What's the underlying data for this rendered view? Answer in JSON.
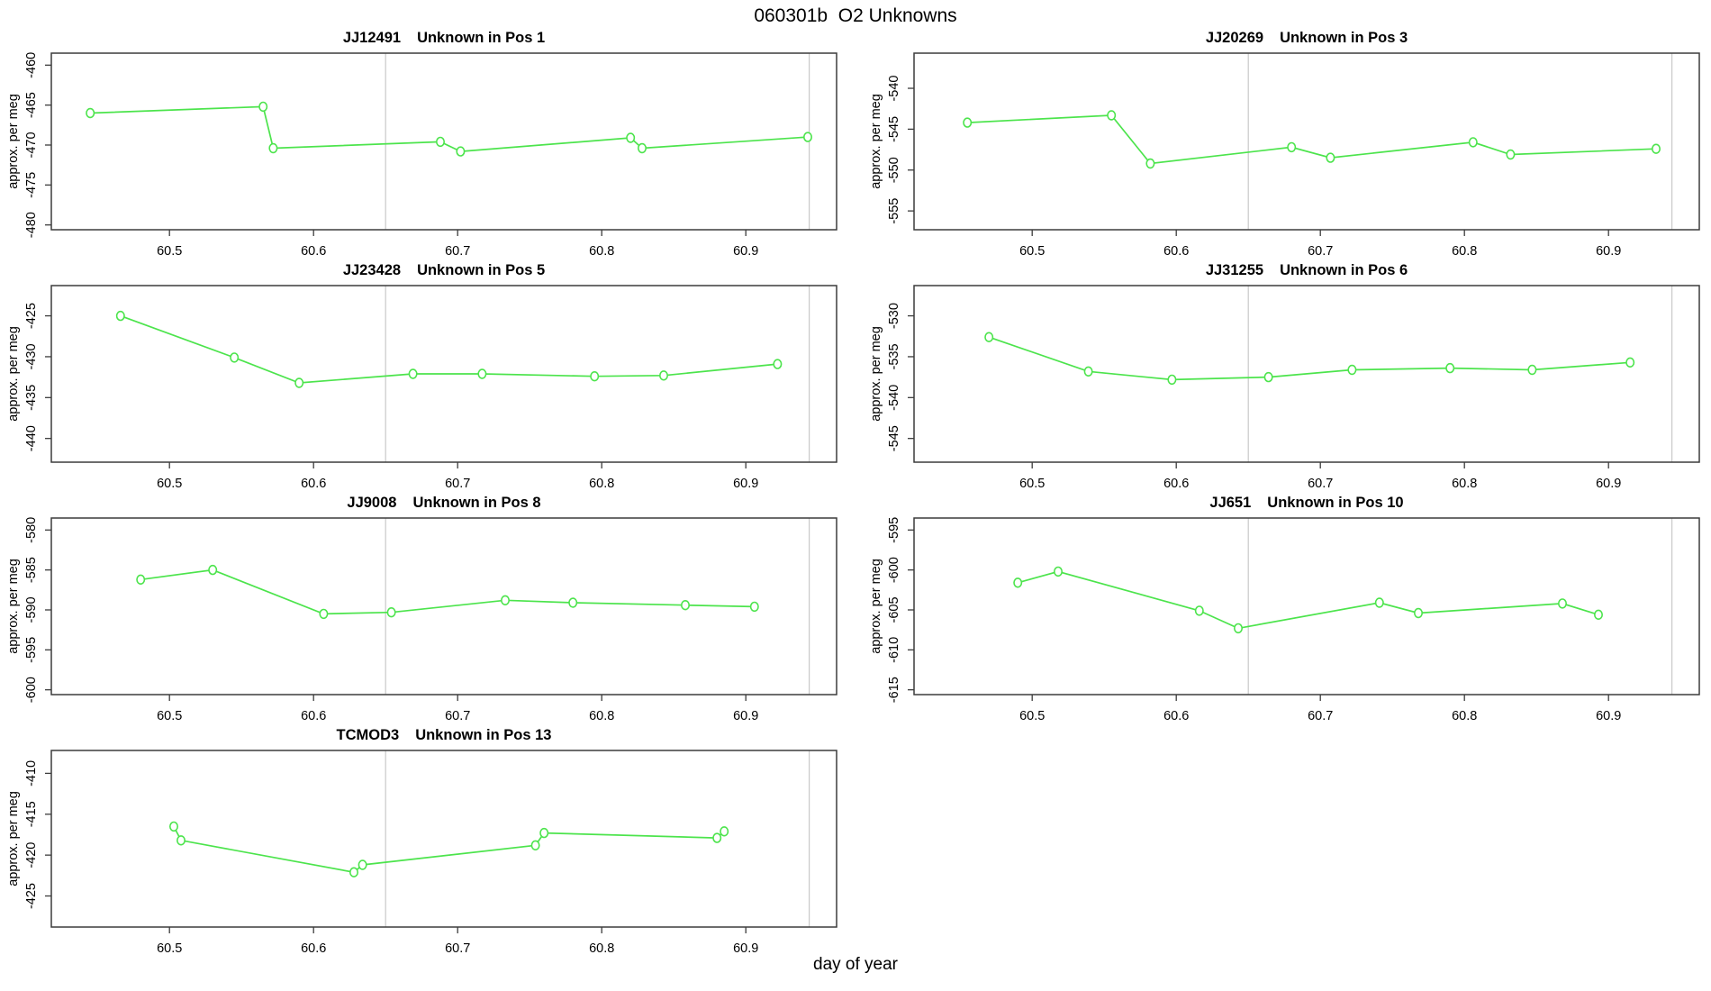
{
  "figure": {
    "title": "060301b  O2 Unknowns",
    "xlabel": "day of year",
    "line_color": "#4ce44c",
    "marker": "open-circle",
    "box_color": "#3c3c3c",
    "vline_color": "#c9c9c9",
    "vlines": [
      60.65,
      60.944
    ]
  },
  "chart_data": [
    {
      "type": "line",
      "sample": "JJ12491",
      "label": "Unknown in Pos 1",
      "ylabel": "approx. per meg",
      "x": [
        60.445,
        60.565,
        60.572,
        60.688,
        60.702,
        60.82,
        60.828,
        60.943
      ],
      "y": [
        -466.0,
        -465.2,
        -470.4,
        -469.6,
        -470.8,
        -469.1,
        -470.4,
        -469.0
      ],
      "xticks": [
        60.5,
        60.6,
        60.7,
        60.8,
        60.9
      ],
      "yticks": [
        -480,
        -475,
        -470,
        -465,
        -460
      ],
      "xlim": [
        60.418,
        60.963
      ],
      "ylim": [
        -480.6,
        -458.5
      ]
    },
    {
      "type": "line",
      "sample": "JJ20269",
      "label": "Unknown in Pos 3",
      "ylabel": "approx. per meg",
      "x": [
        60.455,
        60.555,
        60.582,
        60.68,
        60.707,
        60.806,
        60.832,
        60.933
      ],
      "y": [
        -544.2,
        -543.3,
        -549.2,
        -547.2,
        -548.5,
        -546.6,
        -548.1,
        -547.4
      ],
      "xticks": [
        60.5,
        60.6,
        60.7,
        60.8,
        60.9
      ],
      "yticks": [
        -555,
        -550,
        -545,
        -540
      ],
      "xlim": [
        60.418,
        60.963
      ],
      "ylim": [
        -557.3,
        -535.7
      ]
    },
    {
      "type": "line",
      "sample": "JJ23428",
      "label": "Unknown in Pos 5",
      "ylabel": "approx. per meg",
      "x": [
        60.466,
        60.545,
        60.59,
        60.669,
        60.717,
        60.795,
        60.843,
        60.922
      ],
      "y": [
        -425.0,
        -430.1,
        -433.2,
        -432.1,
        -432.1,
        -432.4,
        -432.3,
        -430.9
      ],
      "xticks": [
        60.5,
        60.6,
        60.7,
        60.8,
        60.9
      ],
      "yticks": [
        -440,
        -435,
        -430,
        -425
      ],
      "xlim": [
        60.418,
        60.963
      ],
      "ylim": [
        -442.9,
        -421.3
      ]
    },
    {
      "type": "line",
      "sample": "JJ31255",
      "label": "Unknown in Pos 6",
      "ylabel": "approx. per meg",
      "x": [
        60.47,
        60.539,
        60.597,
        60.664,
        60.722,
        60.79,
        60.847,
        60.915
      ],
      "y": [
        -532.6,
        -536.8,
        -537.8,
        -537.5,
        -536.6,
        -536.4,
        -536.6,
        -535.7
      ],
      "xticks": [
        60.5,
        60.6,
        60.7,
        60.8,
        60.9
      ],
      "yticks": [
        -545,
        -540,
        -535,
        -530
      ],
      "xlim": [
        60.418,
        60.963
      ],
      "ylim": [
        -547.9,
        -526.3
      ]
    },
    {
      "type": "line",
      "sample": "JJ9008",
      "label": "Unknown in Pos 8",
      "ylabel": "approx. per meg",
      "x": [
        60.48,
        60.53,
        60.607,
        60.654,
        60.733,
        60.78,
        60.858,
        60.906
      ],
      "y": [
        -586.2,
        -585.0,
        -590.5,
        -590.3,
        -588.8,
        -589.1,
        -589.4,
        -589.6
      ],
      "xticks": [
        60.5,
        60.6,
        60.7,
        60.8,
        60.9
      ],
      "yticks": [
        -600,
        -595,
        -590,
        -585,
        -580
      ],
      "xlim": [
        60.418,
        60.963
      ],
      "ylim": [
        -600.6,
        -578.5
      ]
    },
    {
      "type": "line",
      "sample": "JJ651",
      "label": "Unknown in Pos 10",
      "ylabel": "approx. per meg",
      "x": [
        60.49,
        60.518,
        60.616,
        60.643,
        60.741,
        60.768,
        60.868,
        60.893
      ],
      "y": [
        -601.6,
        -600.2,
        -605.1,
        -607.3,
        -604.1,
        -605.4,
        -604.2,
        -605.6
      ],
      "xticks": [
        60.5,
        60.6,
        60.7,
        60.8,
        60.9
      ],
      "yticks": [
        -615,
        -610,
        -605,
        -600,
        -595
      ],
      "xlim": [
        60.418,
        60.963
      ],
      "ylim": [
        -615.6,
        -593.5
      ]
    },
    {
      "type": "line",
      "sample": "TCMOD3",
      "label": "Unknown in Pos 13",
      "ylabel": "approx. per meg",
      "x": [
        60.503,
        60.508,
        60.628,
        60.634,
        60.754,
        60.76,
        60.88,
        60.885
      ],
      "y": [
        -416.5,
        -418.2,
        -422.1,
        -421.2,
        -418.8,
        -417.3,
        -417.9,
        -417.1
      ],
      "xticks": [
        60.5,
        60.6,
        60.7,
        60.8,
        60.9
      ],
      "yticks": [
        -425,
        -420,
        -415,
        -410
      ],
      "xlim": [
        60.418,
        60.963
      ],
      "ylim": [
        -428.8,
        -407.2
      ]
    }
  ]
}
